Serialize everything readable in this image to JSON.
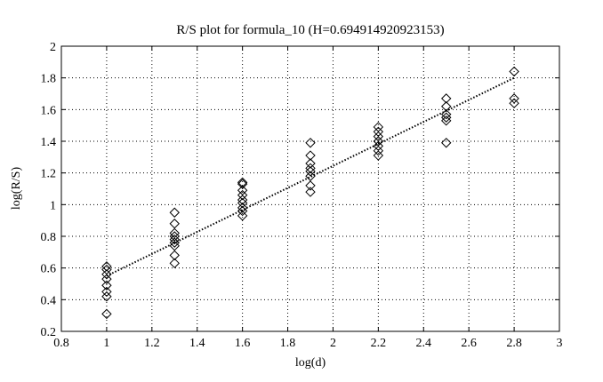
{
  "chart_data": {
    "type": "scatter",
    "title": "R/S plot for formula_10 (H=0.694914920923153)",
    "xlabel": "log(d)",
    "ylabel": "log(R/S)",
    "xlim": [
      0.8,
      3
    ],
    "ylim": [
      0.2,
      2
    ],
    "xticks": [
      "0.8",
      "1",
      "1.2",
      "1.4",
      "1.6",
      "1.8",
      "2",
      "2.2",
      "2.4",
      "2.6",
      "2.8",
      "3"
    ],
    "yticks": [
      "0.2",
      "0.4",
      "0.6",
      "0.8",
      "1",
      "1.2",
      "1.4",
      "1.6",
      "1.8",
      "2"
    ],
    "grid": true,
    "marker": "diamond",
    "series": [
      {
        "points": [
          [
            1.0,
            0.31
          ],
          [
            1.0,
            0.42
          ],
          [
            1.0,
            0.45
          ],
          [
            1.0,
            0.49
          ],
          [
            1.0,
            0.53
          ],
          [
            1.0,
            0.56
          ],
          [
            1.0,
            0.59
          ],
          [
            1.0,
            0.61
          ],
          [
            1.3,
            0.63
          ],
          [
            1.3,
            0.68
          ],
          [
            1.3,
            0.74
          ],
          [
            1.3,
            0.76
          ],
          [
            1.3,
            0.78
          ],
          [
            1.3,
            0.8
          ],
          [
            1.3,
            0.82
          ],
          [
            1.3,
            0.88
          ],
          [
            1.3,
            0.95
          ],
          [
            1.6,
            0.93
          ],
          [
            1.6,
            0.96
          ],
          [
            1.6,
            0.98
          ],
          [
            1.6,
            1.01
          ],
          [
            1.6,
            1.03
          ],
          [
            1.6,
            1.06
          ],
          [
            1.6,
            1.09
          ],
          [
            1.6,
            1.13
          ],
          [
            1.6,
            1.14
          ],
          [
            1.9,
            1.08
          ],
          [
            1.9,
            1.12
          ],
          [
            1.9,
            1.18
          ],
          [
            1.9,
            1.21
          ],
          [
            1.9,
            1.23
          ],
          [
            1.9,
            1.26
          ],
          [
            1.9,
            1.31
          ],
          [
            1.9,
            1.39
          ],
          [
            2.2,
            1.31
          ],
          [
            2.2,
            1.34
          ],
          [
            2.2,
            1.37
          ],
          [
            2.2,
            1.4
          ],
          [
            2.2,
            1.43
          ],
          [
            2.2,
            1.46
          ],
          [
            2.2,
            1.49
          ],
          [
            2.5,
            1.39
          ],
          [
            2.5,
            1.53
          ],
          [
            2.5,
            1.55
          ],
          [
            2.5,
            1.57
          ],
          [
            2.5,
            1.62
          ],
          [
            2.5,
            1.67
          ],
          [
            2.8,
            1.64
          ],
          [
            2.8,
            1.67
          ],
          [
            2.8,
            1.84
          ]
        ]
      }
    ],
    "fit_line": {
      "style": "dotted",
      "from": [
        1.0,
        0.55
      ],
      "to": [
        2.8,
        1.8
      ]
    }
  }
}
